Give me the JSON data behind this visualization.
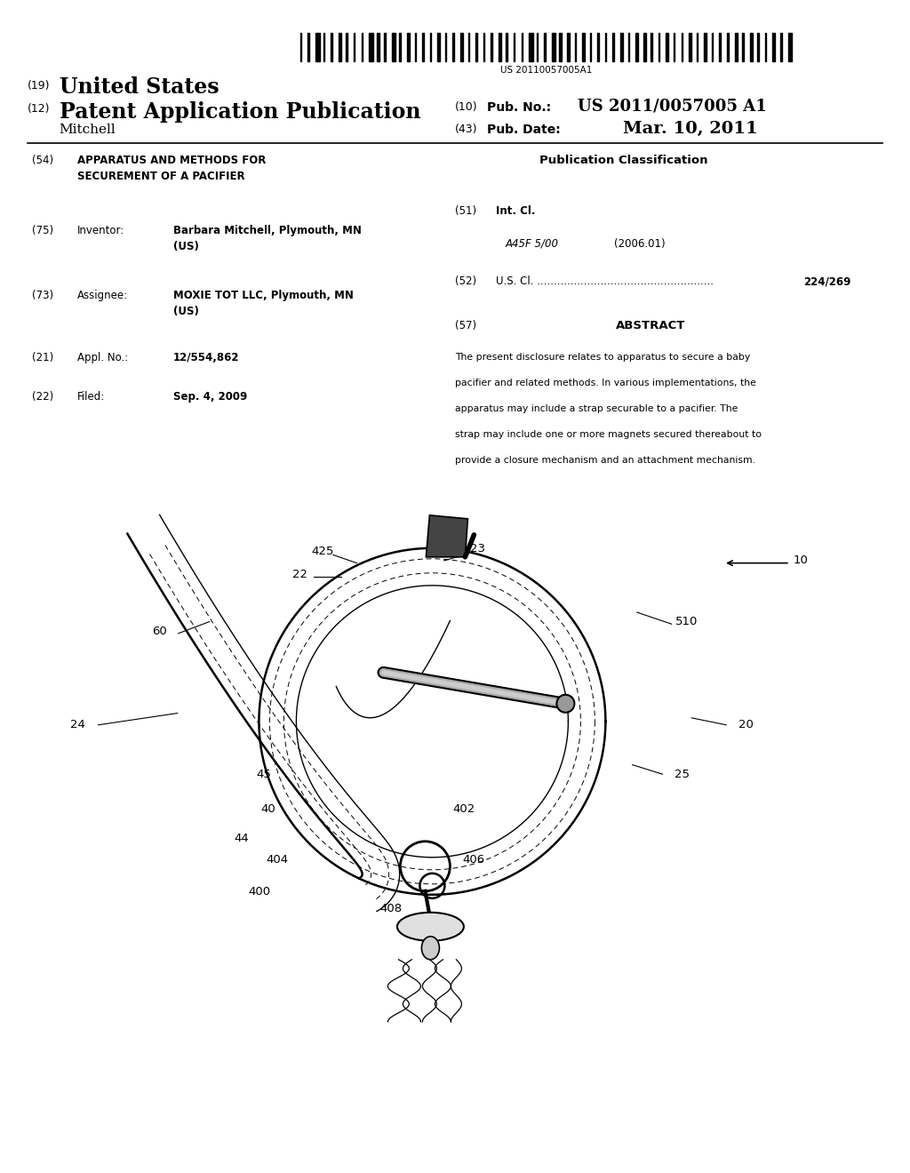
{
  "barcode_text": "US 20110057005A1",
  "patent_number": "US 2011/0057005 A1",
  "pub_date": "Mar. 10, 2011",
  "country": "United States",
  "kind": "Patent Application Publication",
  "inventor_last": "Mitchell",
  "label_19": "(19)",
  "label_12": "(12)",
  "label_10": "(10)",
  "label_43": "(43)",
  "pub_no_label": "Pub. No.:",
  "pub_date_label": "Pub. Date:",
  "section54_label": "(54)",
  "section54_title": "APPARATUS AND METHODS FOR\nSECUREMENT OF A PACIFIER",
  "section75_label": "(75)",
  "section75_field": "Inventor:",
  "section75_value": "Barbara Mitchell, Plymouth, MN\n(US)",
  "section73_label": "(73)",
  "section73_field": "Assignee:",
  "section73_value": "MOXIE TOT LLC, Plymouth, MN\n(US)",
  "section21_label": "(21)",
  "section21_field": "Appl. No.:",
  "section21_value": "12/554,862",
  "section22_label": "(22)",
  "section22_field": "Filed:",
  "section22_value": "Sep. 4, 2009",
  "pub_class_title": "Publication Classification",
  "section51_label": "(51)",
  "section51_field": "Int. Cl.",
  "section51_class": "A45F 5/00",
  "section51_year": "(2006.01)",
  "section52_label": "(52)",
  "section52_field": "U.S. Cl. .....................................................",
  "section52_value": "224/269",
  "section57_label": "(57)",
  "section57_title": "ABSTRACT",
  "abstract_lines": [
    "The present disclosure relates to apparatus to secure a baby",
    "pacifier and related methods. In various implementations, the",
    "apparatus may include a strap securable to a pacifier. The",
    "strap may include one or more magnets secured thereabout to",
    "provide a closure mechanism and an attachment mechanism."
  ],
  "bg_color": "#ffffff",
  "text_color": "#000000"
}
